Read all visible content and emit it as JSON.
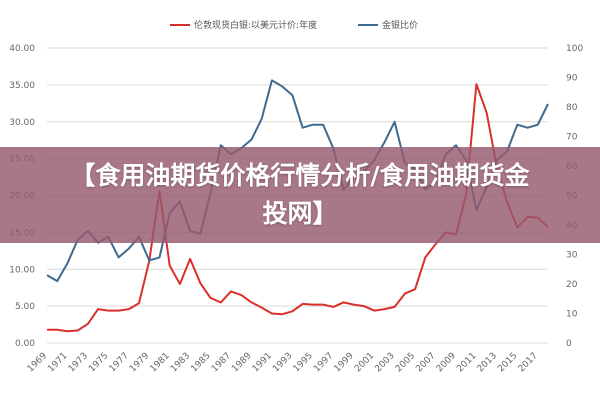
{
  "banner": {
    "title": "【食用油期货价格行情分析/食用油期货金投网】"
  },
  "chart_data": {
    "type": "line",
    "legend": [
      "伦敦现货白银:以美元计价:年度",
      "金银比价"
    ],
    "colors": [
      "#d9302b",
      "#3e6a8f"
    ],
    "years": [
      1969,
      1970,
      1971,
      1972,
      1973,
      1974,
      1975,
      1976,
      1977,
      1978,
      1979,
      1980,
      1981,
      1982,
      1983,
      1984,
      1985,
      1986,
      1987,
      1988,
      1989,
      1990,
      1991,
      1992,
      1993,
      1994,
      1995,
      1996,
      1997,
      1998,
      1999,
      2000,
      2001,
      2002,
      2003,
      2004,
      2005,
      2006,
      2007,
      2008,
      2009,
      2010,
      2011,
      2012,
      2013,
      2014,
      2015,
      2016,
      2017,
      2018
    ],
    "x_tick_labels": [
      "1969",
      "1971",
      "1973",
      "1975",
      "1977",
      "1979",
      "1981",
      "1983",
      "1985",
      "1987",
      "1989",
      "1991",
      "1993",
      "1995",
      "1997",
      "1999",
      "2001",
      "2003",
      "2005",
      "2007",
      "2009",
      "2011",
      "2013",
      "2015",
      "2017"
    ],
    "y_left_ticks": [
      "0.00",
      "5.00",
      "10.00",
      "15.00",
      "20.00",
      "25.00",
      "30.00",
      "35.00",
      "40.00"
    ],
    "y_right_ticks": [
      "0",
      "10",
      "20",
      "30",
      "40",
      "50",
      "60",
      "70",
      "80",
      "90",
      "100"
    ],
    "ylim_left": [
      0,
      40
    ],
    "ylim_right": [
      0,
      100
    ],
    "series": [
      {
        "name": "伦敦现货白银:以美元计价:年度",
        "axis": "left",
        "values": [
          1.8,
          1.8,
          1.6,
          1.7,
          2.6,
          4.6,
          4.4,
          4.4,
          4.6,
          5.4,
          11.1,
          20.6,
          10.5,
          8.0,
          11.4,
          8.1,
          6.1,
          5.5,
          7.0,
          6.5,
          5.5,
          4.8,
          4.0,
          3.9,
          4.3,
          5.3,
          5.2,
          5.2,
          4.9,
          5.5,
          5.2,
          5.0,
          4.4,
          4.6,
          4.9,
          6.7,
          7.3,
          11.6,
          13.4,
          15.0,
          14.7,
          20.2,
          35.1,
          31.2,
          23.8,
          19.1,
          15.7,
          17.1,
          17.0,
          15.7
        ]
      },
      {
        "name": "金银比价",
        "axis": "right",
        "values": [
          23,
          21,
          27,
          35,
          38,
          34,
          36,
          29,
          32,
          36,
          28,
          29,
          44,
          48,
          38,
          37,
          51,
          67,
          64,
          66,
          69,
          76,
          89,
          87,
          84,
          73,
          74,
          74,
          66,
          52,
          56,
          58,
          62,
          68,
          75,
          61,
          59,
          52,
          55,
          64,
          67,
          62,
          45,
          53,
          62,
          65,
          74,
          73,
          74,
          81
        ]
      }
    ]
  }
}
